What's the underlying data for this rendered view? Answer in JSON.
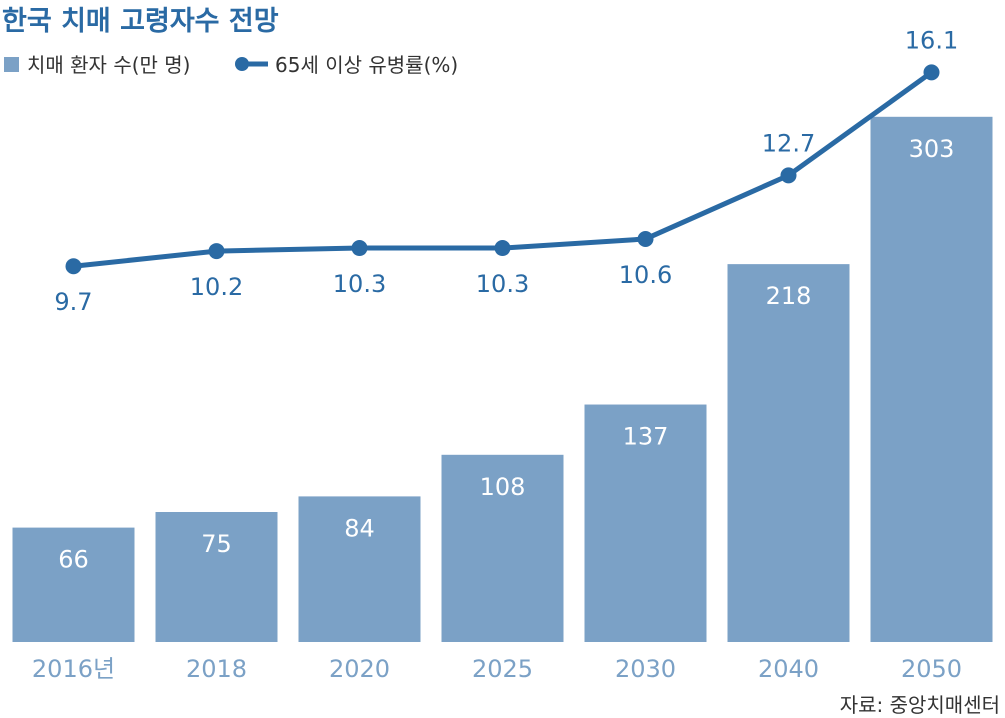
{
  "chart_data": {
    "type": "bar",
    "title": "한국 치매 고령자수 전망",
    "categories": [
      "2016년",
      "2018",
      "2020",
      "2025",
      "2030",
      "2040",
      "2050"
    ],
    "series": [
      {
        "name": "치매 환자 수(만 명)",
        "kind": "bar",
        "values": [
          66,
          75,
          84,
          108,
          137,
          218,
          303
        ]
      },
      {
        "name": "65세 이상 유병률(%)",
        "kind": "line",
        "values": [
          9.7,
          10.2,
          10.3,
          10.3,
          10.6,
          12.7,
          16.1
        ]
      }
    ],
    "ylim_bars": [
      0,
      330
    ],
    "ylim_line": [
      0,
      17.5
    ],
    "legend_position": "top-left",
    "grid": false,
    "source": "자료: 중앙치매센터",
    "colors": {
      "bar": "#7ba1c6",
      "line": "#2a6aa4",
      "title": "#2a6aa4",
      "axis_label": "#7ba1c6",
      "bar_value_label": "#ffffff",
      "line_value_label": "#2a6aa4",
      "legend_text": "#333333",
      "source_text": "#333333"
    }
  }
}
